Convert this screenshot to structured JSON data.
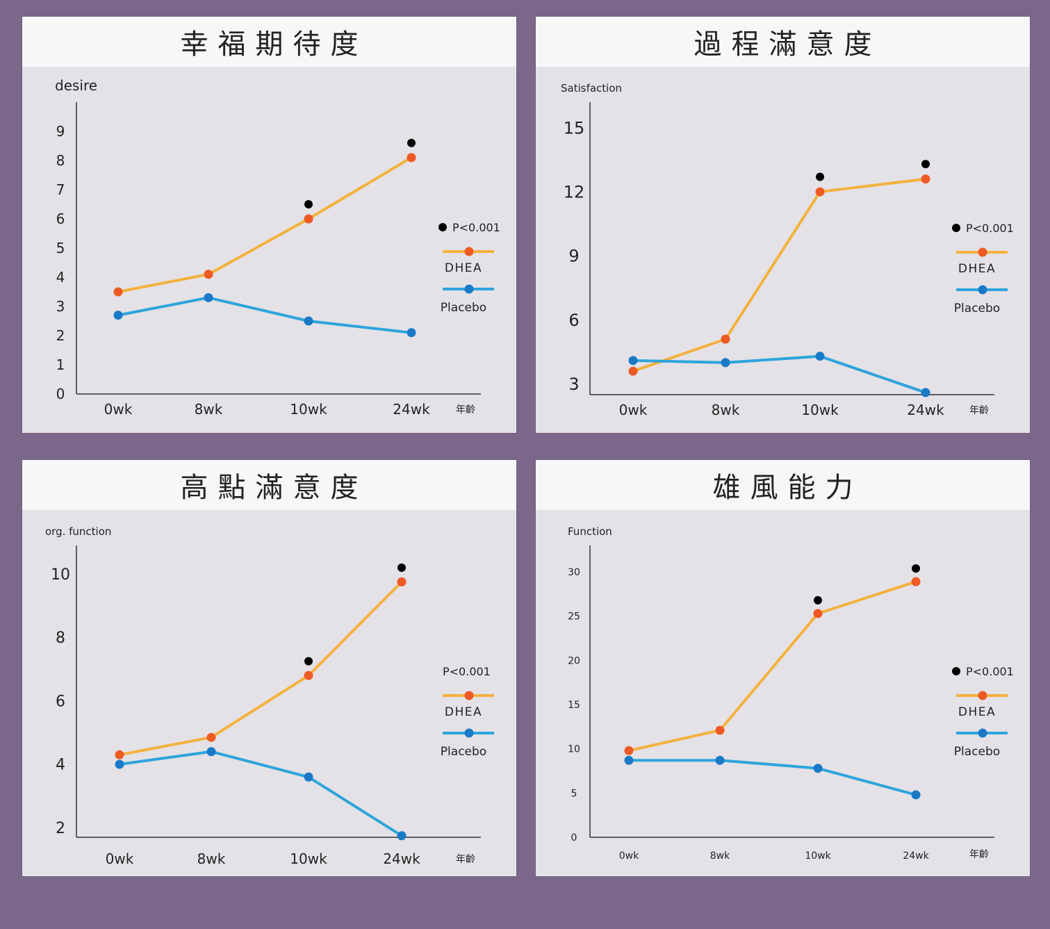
{
  "colors": {
    "background": "#7a6789",
    "panel": "#e4e2e7",
    "header": "#f7f7f8",
    "dhea_line": "#f4b13d",
    "dhea_point": "#ee5a24",
    "placebo_line": "#2ea4dc",
    "placebo_point": "#1a7ac8",
    "significance_dot": "#000000"
  },
  "chart_data": [
    {
      "type": "line",
      "title": "幸福期待度",
      "ylabel": "desire",
      "xlabel": "年齡",
      "categories": [
        "0wk",
        "8wk",
        "10wk",
        "24wk"
      ],
      "yticks": [
        "0",
        "1",
        "2",
        "3",
        "4",
        "5",
        "6",
        "7",
        "8",
        "9"
      ],
      "ylim": [
        0,
        10
      ],
      "grid": false,
      "legend_position": "right",
      "legend": {
        "sig_label": "P<0.001",
        "dhea_label": "DHEA",
        "placebo_label": "Placebo",
        "sig_dot": true
      },
      "series": [
        {
          "name": "DHEA",
          "values": [
            3.5,
            4.1,
            6.0,
            8.1
          ]
        },
        {
          "name": "Placebo",
          "values": [
            2.7,
            3.3,
            2.5,
            2.1
          ]
        }
      ],
      "significance": [
        {
          "category": "10wk",
          "value": 6.5
        },
        {
          "category": "24wk",
          "value": 8.6
        }
      ]
    },
    {
      "type": "line",
      "title": "過程滿意度",
      "ylabel": "Satisfaction",
      "xlabel": "年齡",
      "categories": [
        "0wk",
        "8wk",
        "10wk",
        "24wk"
      ],
      "yticks": [
        "3",
        "6",
        "9",
        "12",
        "15"
      ],
      "ylim": [
        2.5,
        16.2
      ],
      "grid": false,
      "legend_position": "right",
      "legend": {
        "sig_label": "P<0.001",
        "dhea_label": "DHEA",
        "placebo_label": "Placebo",
        "sig_dot": true
      },
      "series": [
        {
          "name": "DHEA",
          "values": [
            3.6,
            5.1,
            12.0,
            12.6
          ]
        },
        {
          "name": "Placebo",
          "values": [
            4.1,
            4.0,
            4.3,
            2.6
          ]
        }
      ],
      "significance": [
        {
          "category": "10wk",
          "value": 12.7
        },
        {
          "category": "24wk",
          "value": 13.3
        }
      ]
    },
    {
      "type": "line",
      "title": "高點滿意度",
      "ylabel": "org. function",
      "xlabel": "年齡",
      "categories": [
        "0wk",
        "8wk",
        "10wk",
        "24wk"
      ],
      "yticks": [
        "2",
        "4",
        "6",
        "8",
        "10"
      ],
      "ylim": [
        1.7,
        10.9
      ],
      "grid": false,
      "legend_position": "right",
      "legend": {
        "sig_label": "P<0.001",
        "dhea_label": "DHEA",
        "placebo_label": "Placebo",
        "sig_dot": false
      },
      "series": [
        {
          "name": "DHEA",
          "values": [
            4.3,
            4.85,
            6.8,
            9.75
          ]
        },
        {
          "name": "Placebo",
          "values": [
            4.0,
            4.4,
            3.6,
            1.75
          ]
        }
      ],
      "significance": [
        {
          "category": "10wk",
          "value": 7.25
        },
        {
          "category": "24wk",
          "value": 10.2
        }
      ]
    },
    {
      "type": "line",
      "title": "雄風能力",
      "ylabel": "Function",
      "xlabel": "年齡",
      "categories": [
        "0wk",
        "8wk",
        "10wk",
        "24wk"
      ],
      "yticks": [
        "0",
        "5",
        "10",
        "15",
        "20",
        "25",
        "30"
      ],
      "ylim": [
        0,
        33
      ],
      "grid": false,
      "legend_position": "right",
      "legend": {
        "sig_label": "P<0.001",
        "dhea_label": "DHEA",
        "placebo_label": "Placebo",
        "sig_dot": true
      },
      "series": [
        {
          "name": "DHEA",
          "values": [
            9.8,
            12.1,
            25.3,
            28.9
          ]
        },
        {
          "name": "Placebo",
          "values": [
            8.7,
            8.7,
            7.8,
            4.8
          ]
        }
      ],
      "significance": [
        {
          "category": "10wk",
          "value": 26.8
        },
        {
          "category": "24wk",
          "value": 30.4
        }
      ]
    }
  ]
}
